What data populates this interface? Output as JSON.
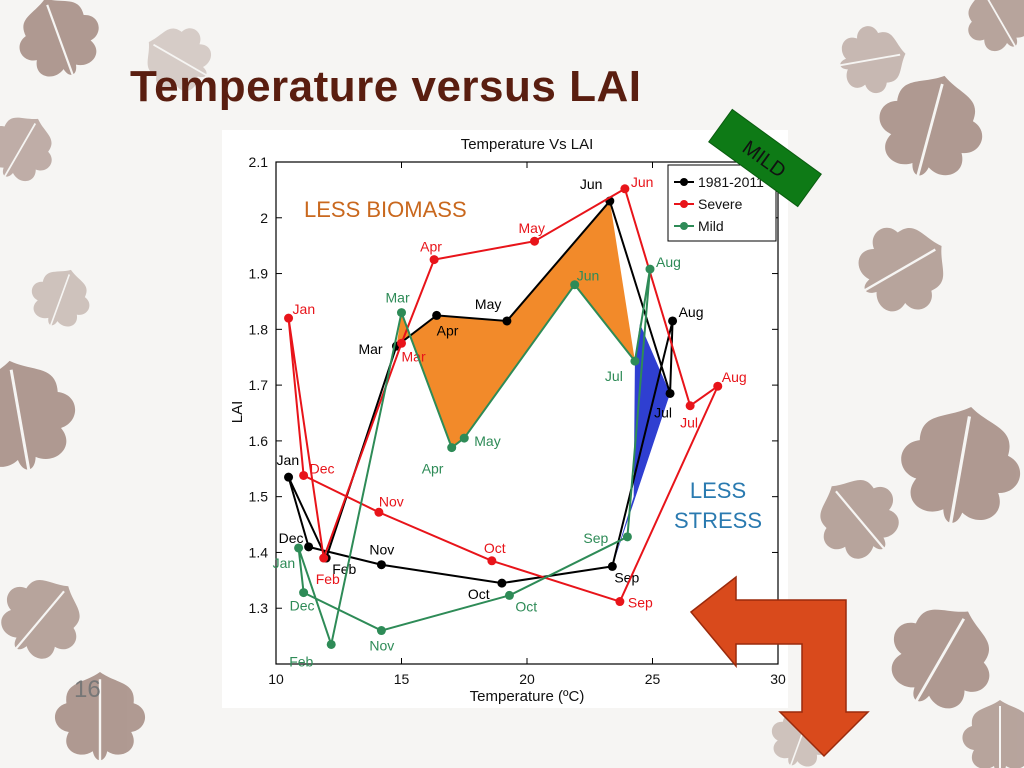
{
  "slide": {
    "title": "Temperature versus LAI",
    "page_number": "16",
    "annotations": {
      "less_biomass": "LESS BIOMASS",
      "less_stress_1": "LESS",
      "less_stress_2": "STRESS",
      "mild_tag": "MILD"
    },
    "colors": {
      "title": "#5a1e10",
      "leaf": "#a89087",
      "biomass_text": "#c9681e",
      "stress_text": "#2a7ab0",
      "mild_tag_bg": "#0e7a16",
      "arrow": "#d94a1c"
    }
  },
  "chart_data": {
    "type": "line",
    "title": "Temperature Vs LAI",
    "xlabel": "Temperature (ºC)",
    "ylabel": "LAI",
    "xlim": [
      10,
      30
    ],
    "ylim": [
      1.2,
      2.1
    ],
    "xticks": [
      "10",
      "15",
      "20",
      "25",
      "30"
    ],
    "yticks": [
      "1.3",
      "1.4",
      "1.5",
      "1.6",
      "1.7",
      "1.8",
      "1.9",
      "2",
      "2.1"
    ],
    "legend_position": "top-right",
    "series": [
      {
        "name": "1981-2011",
        "color": "#000000",
        "points": [
          {
            "label": "Jan",
            "x": 10.5,
            "y": 1.535
          },
          {
            "label": "Feb",
            "x": 12.0,
            "y": 1.39
          },
          {
            "label": "Mar",
            "x": 14.8,
            "y": 1.77
          },
          {
            "label": "Apr",
            "x": 16.4,
            "y": 1.825
          },
          {
            "label": "May",
            "x": 19.2,
            "y": 1.815
          },
          {
            "label": "Jun",
            "x": 23.3,
            "y": 2.03
          },
          {
            "label": "Jul",
            "x": 25.7,
            "y": 1.685
          },
          {
            "label": "Aug",
            "x": 25.8,
            "y": 1.815
          },
          {
            "label": "Sep",
            "x": 23.4,
            "y": 1.375
          },
          {
            "label": "Oct",
            "x": 19.0,
            "y": 1.345
          },
          {
            "label": "Nov",
            "x": 14.2,
            "y": 1.378
          },
          {
            "label": "Dec",
            "x": 11.3,
            "y": 1.41
          }
        ]
      },
      {
        "name": "Severe",
        "color": "#e8141a",
        "points": [
          {
            "label": "Jan",
            "x": 10.5,
            "y": 1.82
          },
          {
            "label": "Feb",
            "x": 11.9,
            "y": 1.39
          },
          {
            "label": "Mar",
            "x": 15.0,
            "y": 1.775
          },
          {
            "label": "Apr",
            "x": 16.3,
            "y": 1.925
          },
          {
            "label": "May",
            "x": 20.3,
            "y": 1.958
          },
          {
            "label": "Jun",
            "x": 23.9,
            "y": 2.052
          },
          {
            "label": "Jul",
            "x": 26.5,
            "y": 1.663
          },
          {
            "label": "Aug",
            "x": 27.6,
            "y": 1.698
          },
          {
            "label": "Sep",
            "x": 23.7,
            "y": 1.312
          },
          {
            "label": "Oct",
            "x": 18.6,
            "y": 1.385
          },
          {
            "label": "Nov",
            "x": 14.1,
            "y": 1.472
          },
          {
            "label": "Dec",
            "x": 11.1,
            "y": 1.538
          }
        ]
      },
      {
        "name": "Mild",
        "color": "#2e8b57",
        "points": [
          {
            "label": "Jan",
            "x": 10.9,
            "y": 1.408
          },
          {
            "label": "Feb",
            "x": 12.2,
            "y": 1.235
          },
          {
            "label": "Mar",
            "x": 15.0,
            "y": 1.83
          },
          {
            "label": "Apr",
            "x": 17.0,
            "y": 1.588
          },
          {
            "label": "May",
            "x": 17.5,
            "y": 1.605
          },
          {
            "label": "Jun",
            "x": 21.9,
            "y": 1.88
          },
          {
            "label": "Jul",
            "x": 24.3,
            "y": 1.743
          },
          {
            "label": "Aug",
            "x": 24.9,
            "y": 1.908
          },
          {
            "label": "Sep",
            "x": 24.0,
            "y": 1.428
          },
          {
            "label": "Oct",
            "x": 19.3,
            "y": 1.323
          },
          {
            "label": "Nov",
            "x": 14.2,
            "y": 1.26
          },
          {
            "label": "Dec",
            "x": 11.1,
            "y": 1.328
          }
        ]
      }
    ]
  }
}
